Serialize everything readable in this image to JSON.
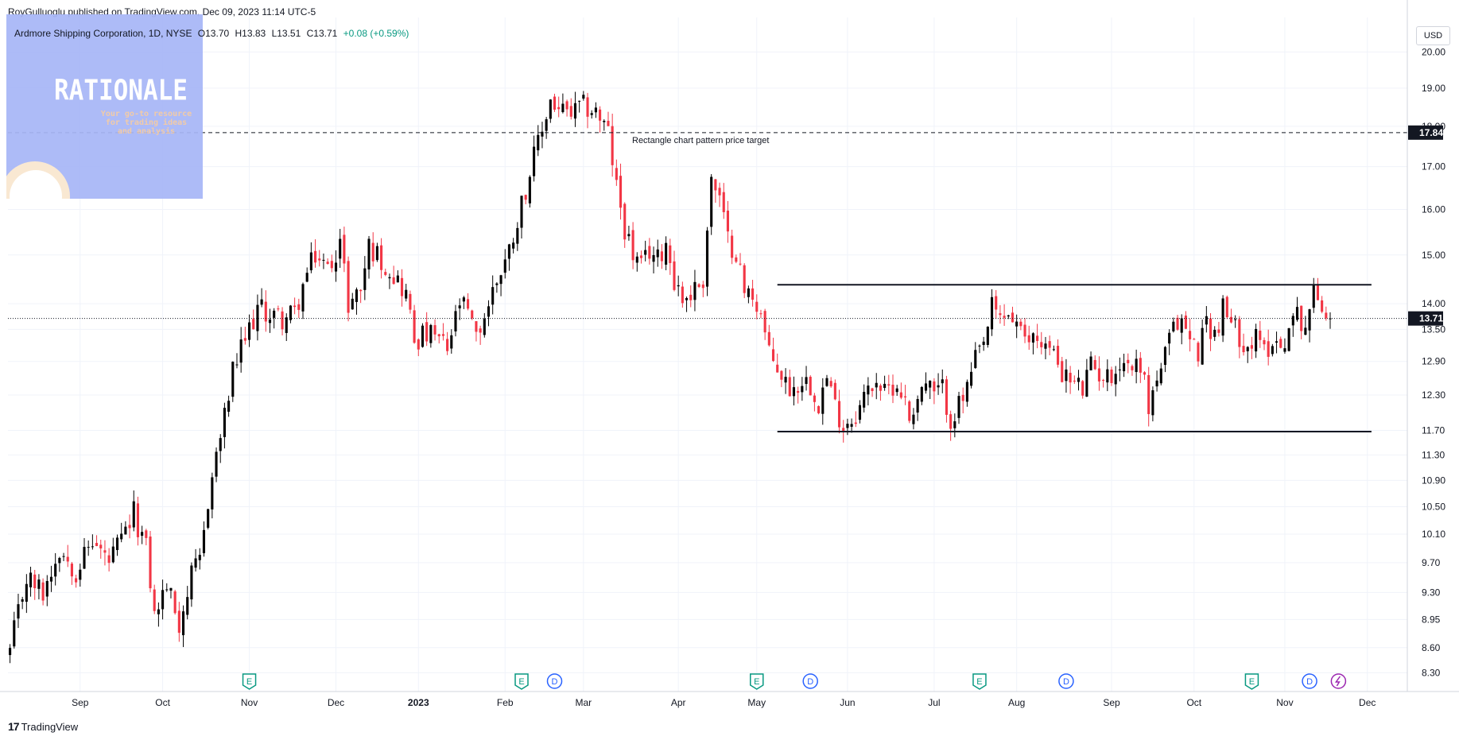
{
  "header": {
    "published_by": "RoyGulluoglu published on TradingView.com, Dec 09, 2023 11:14 UTC-5"
  },
  "symbol": {
    "name": "Ardmore Shipping Corporation, 1D, NYSE",
    "open": "O13.70",
    "high": "H13.83",
    "low": "L13.51",
    "close": "C13.71",
    "change": "+0.08 (+0.59%)",
    "change_color": "#089981"
  },
  "logo": {
    "title": "RATIONALE",
    "tagline_1": "Your go-to resource",
    "tagline_2": "for trading ideas",
    "tagline_3": "and analysis"
  },
  "currency": "USD",
  "footer": {
    "brand": "TradingView",
    "icon": "tradingview-logo-icon"
  },
  "colors": {
    "up": "#000000",
    "down": "#f23645",
    "grid": "#f0f3fa",
    "axis_text": "#131722",
    "event_earnings": "#089981",
    "event_dividend": "#2962ff",
    "event_split": "#9c27b0"
  },
  "chart_data": {
    "type": "candlestick",
    "symbol": "Ardmore Shipping Corporation",
    "interval": "1D",
    "exchange": "NYSE",
    "y_scale": "log",
    "ylim": [
      8.1,
      21.0
    ],
    "y_ticks": [
      "20.00",
      "19.00",
      "18.00",
      "17.00",
      "16.00",
      "15.00",
      "14.00",
      "13.50",
      "12.90",
      "12.30",
      "11.70",
      "11.30",
      "10.90",
      "10.50",
      "10.10",
      "9.70",
      "9.30",
      "8.95",
      "8.60",
      "8.30"
    ],
    "x_ticks": [
      {
        "label": "Sep",
        "bar": 17
      },
      {
        "label": "Oct",
        "bar": 37
      },
      {
        "label": "Nov",
        "bar": 58
      },
      {
        "label": "Dec",
        "bar": 79
      },
      {
        "label": "2023",
        "bar": 99,
        "bold": true
      },
      {
        "label": "Feb",
        "bar": 120
      },
      {
        "label": "Mar",
        "bar": 139
      },
      {
        "label": "Apr",
        "bar": 162
      },
      {
        "label": "May",
        "bar": 181
      },
      {
        "label": "Jun",
        "bar": 203
      },
      {
        "label": "Jul",
        "bar": 224
      },
      {
        "label": "Aug",
        "bar": 244
      },
      {
        "label": "Sep",
        "bar": 267
      },
      {
        "label": "Oct",
        "bar": 287
      },
      {
        "label": "Nov",
        "bar": 309
      },
      {
        "label": "Dec",
        "bar": 329
      }
    ],
    "bar_count": 339,
    "anchors": [
      [
        0,
        8.55
      ],
      [
        4,
        9.5
      ],
      [
        8,
        9.3
      ],
      [
        12,
        9.9
      ],
      [
        16,
        9.6
      ],
      [
        20,
        10.0
      ],
      [
        24,
        9.7
      ],
      [
        28,
        10.1
      ],
      [
        30,
        10.4
      ],
      [
        33,
        9.9
      ],
      [
        35,
        9.0
      ],
      [
        38,
        9.4
      ],
      [
        41,
        8.9
      ],
      [
        44,
        9.5
      ],
      [
        46,
        9.7
      ],
      [
        48,
        10.6
      ],
      [
        50,
        11.3
      ],
      [
        52,
        11.9
      ],
      [
        54,
        12.7
      ],
      [
        56,
        13.1
      ],
      [
        60,
        13.9
      ],
      [
        63,
        13.8
      ],
      [
        66,
        13.7
      ],
      [
        69,
        13.8
      ],
      [
        72,
        14.6
      ],
      [
        74,
        15.0
      ],
      [
        77,
        14.7
      ],
      [
        80,
        15.3
      ],
      [
        82,
        14.0
      ],
      [
        85,
        14.3
      ],
      [
        87,
        15.2
      ],
      [
        90,
        14.9
      ],
      [
        93,
        14.6
      ],
      [
        96,
        14.2
      ],
      [
        98,
        13.3
      ],
      [
        101,
        13.4
      ],
      [
        104,
        13.3
      ],
      [
        106,
        13.1
      ],
      [
        109,
        14.0
      ],
      [
        111,
        13.8
      ],
      [
        113,
        13.3
      ],
      [
        116,
        14.0
      ],
      [
        118,
        14.5
      ],
      [
        121,
        15.1
      ],
      [
        123,
        15.8
      ],
      [
        125,
        16.5
      ],
      [
        127,
        17.2
      ],
      [
        129,
        17.9
      ],
      [
        131,
        18.7
      ],
      [
        133,
        18.4
      ],
      [
        136,
        18.3
      ],
      [
        139,
        18.5
      ],
      [
        142,
        18.4
      ],
      [
        145,
        17.8
      ],
      [
        147,
        16.5
      ],
      [
        149,
        15.6
      ],
      [
        151,
        15.0
      ],
      [
        153,
        14.7
      ],
      [
        155,
        15.1
      ],
      [
        157,
        14.9
      ],
      [
        159,
        15.3
      ],
      [
        161,
        14.5
      ],
      [
        163,
        14.1
      ],
      [
        165,
        14.2
      ],
      [
        168,
        14.5
      ],
      [
        170,
        16.7
      ],
      [
        172,
        16.2
      ],
      [
        174,
        15.3
      ],
      [
        176,
        15.1
      ],
      [
        178,
        14.2
      ],
      [
        180,
        14.2
      ],
      [
        182,
        13.8
      ],
      [
        184,
        13.0
      ],
      [
        186,
        12.8
      ],
      [
        188,
        12.5
      ],
      [
        190,
        12.4
      ],
      [
        192,
        12.6
      ],
      [
        194,
        12.5
      ],
      [
        196,
        12.2
      ],
      [
        198,
        12.6
      ],
      [
        200,
        12.1
      ],
      [
        202,
        11.8
      ],
      [
        204,
        11.9
      ],
      [
        206,
        12.1
      ],
      [
        208,
        12.4
      ],
      [
        210,
        12.6
      ],
      [
        212,
        12.3
      ],
      [
        214,
        12.5
      ],
      [
        216,
        12.4
      ],
      [
        218,
        11.9
      ],
      [
        220,
        12.3
      ],
      [
        222,
        12.5
      ],
      [
        224,
        12.3
      ],
      [
        226,
        12.4
      ],
      [
        228,
        11.9
      ],
      [
        230,
        12.1
      ],
      [
        232,
        12.4
      ],
      [
        234,
        12.9
      ],
      [
        236,
        13.2
      ],
      [
        238,
        13.9
      ],
      [
        240,
        13.7
      ],
      [
        242,
        13.8
      ],
      [
        244,
        13.6
      ],
      [
        246,
        13.2
      ],
      [
        248,
        13.4
      ],
      [
        250,
        13.3
      ],
      [
        252,
        13.1
      ],
      [
        254,
        12.9
      ],
      [
        256,
        12.6
      ],
      [
        258,
        12.5
      ],
      [
        260,
        12.4
      ],
      [
        262,
        12.8
      ],
      [
        264,
        12.7
      ],
      [
        266,
        12.6
      ],
      [
        268,
        12.8
      ],
      [
        270,
        12.9
      ],
      [
        272,
        12.8
      ],
      [
        274,
        12.9
      ],
      [
        276,
        12.1
      ],
      [
        278,
        12.6
      ],
      [
        280,
        13.0
      ],
      [
        282,
        13.5
      ],
      [
        284,
        13.7
      ],
      [
        286,
        13.3
      ],
      [
        288,
        13.1
      ],
      [
        290,
        13.7
      ],
      [
        292,
        13.4
      ],
      [
        294,
        13.9
      ],
      [
        296,
        13.6
      ],
      [
        298,
        13.4
      ],
      [
        300,
        13.2
      ],
      [
        302,
        13.3
      ],
      [
        304,
        13.1
      ],
      [
        306,
        13.3
      ],
      [
        308,
        13.2
      ],
      [
        310,
        13.5
      ],
      [
        312,
        13.8
      ],
      [
        314,
        13.6
      ],
      [
        316,
        14.2
      ],
      [
        318,
        14.0
      ],
      [
        320,
        13.71
      ]
    ],
    "last_price": 13.71,
    "last_price_label": "13.71",
    "annotations": {
      "target_line": {
        "price": 17.84,
        "label": "17.84",
        "text": "Rectangle chart pattern price target"
      },
      "rectangle_top": {
        "price": 14.38,
        "from_bar": 186,
        "to_bar": 330
      },
      "rectangle_bottom": {
        "price": 11.68,
        "from_bar": 186,
        "to_bar": 330
      }
    },
    "events": [
      {
        "bar": 58,
        "type": "E"
      },
      {
        "bar": 124,
        "type": "E"
      },
      {
        "bar": 132,
        "type": "D"
      },
      {
        "bar": 181,
        "type": "E"
      },
      {
        "bar": 194,
        "type": "D"
      },
      {
        "bar": 235,
        "type": "E"
      },
      {
        "bar": 256,
        "type": "D"
      },
      {
        "bar": 301,
        "type": "E"
      },
      {
        "bar": 315,
        "type": "D"
      },
      {
        "bar": 322,
        "type": "S"
      }
    ]
  }
}
